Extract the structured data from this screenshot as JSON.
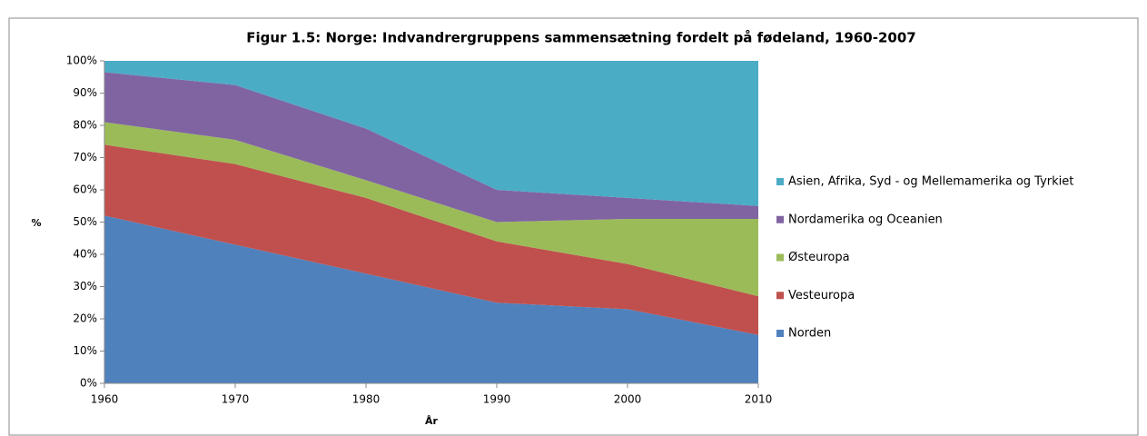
{
  "chart_data": {
    "type": "stacked_area",
    "title": "Figur 1.5: Norge: Indvandrergruppens sammensætning fordelt på fødeland, 1960-2007",
    "x_label": "År",
    "y_label": "%",
    "x": [
      1960,
      1970,
      1980,
      1990,
      2000,
      2010
    ],
    "xlim": [
      1960,
      2010
    ],
    "xticks": [
      1960,
      1970,
      1980,
      1990,
      2000,
      2010
    ],
    "ylim": [
      0,
      100
    ],
    "yticks": [
      {
        "value": 0,
        "label": "0%"
      },
      {
        "value": 10,
        "label": "10%"
      },
      {
        "value": 20,
        "label": "20%"
      },
      {
        "value": 30,
        "label": "30%"
      },
      {
        "value": 40,
        "label": "40%"
      },
      {
        "value": 50,
        "label": "50%"
      },
      {
        "value": 60,
        "label": "60%"
      },
      {
        "value": 70,
        "label": "70%"
      },
      {
        "value": 80,
        "label": "80%"
      },
      {
        "value": 90,
        "label": "90%"
      },
      {
        "value": 100,
        "label": "100%"
      }
    ],
    "legend": "right",
    "series": [
      {
        "name": "Norden",
        "color": "#4f81bd",
        "values": [
          52,
          43,
          34,
          25,
          23,
          15
        ]
      },
      {
        "name": "Vesteuropa",
        "color": "#c0504d",
        "values": [
          22,
          25,
          23.5,
          19,
          14,
          12
        ]
      },
      {
        "name": "Østeuropa",
        "color": "#9bbb59",
        "values": [
          7,
          7.5,
          5.5,
          6,
          14,
          24
        ]
      },
      {
        "name": "Nordamerika og Oceanien",
        "color": "#8064a2",
        "values": [
          15.5,
          17,
          16,
          10,
          6.5,
          4
        ]
      },
      {
        "name": "Asien, Afrika, Syd - og Mellemamerika og Tyrkiet",
        "color": "#4bacc6",
        "values": [
          3.5,
          7.5,
          21,
          40,
          42.5,
          45
        ]
      }
    ]
  }
}
